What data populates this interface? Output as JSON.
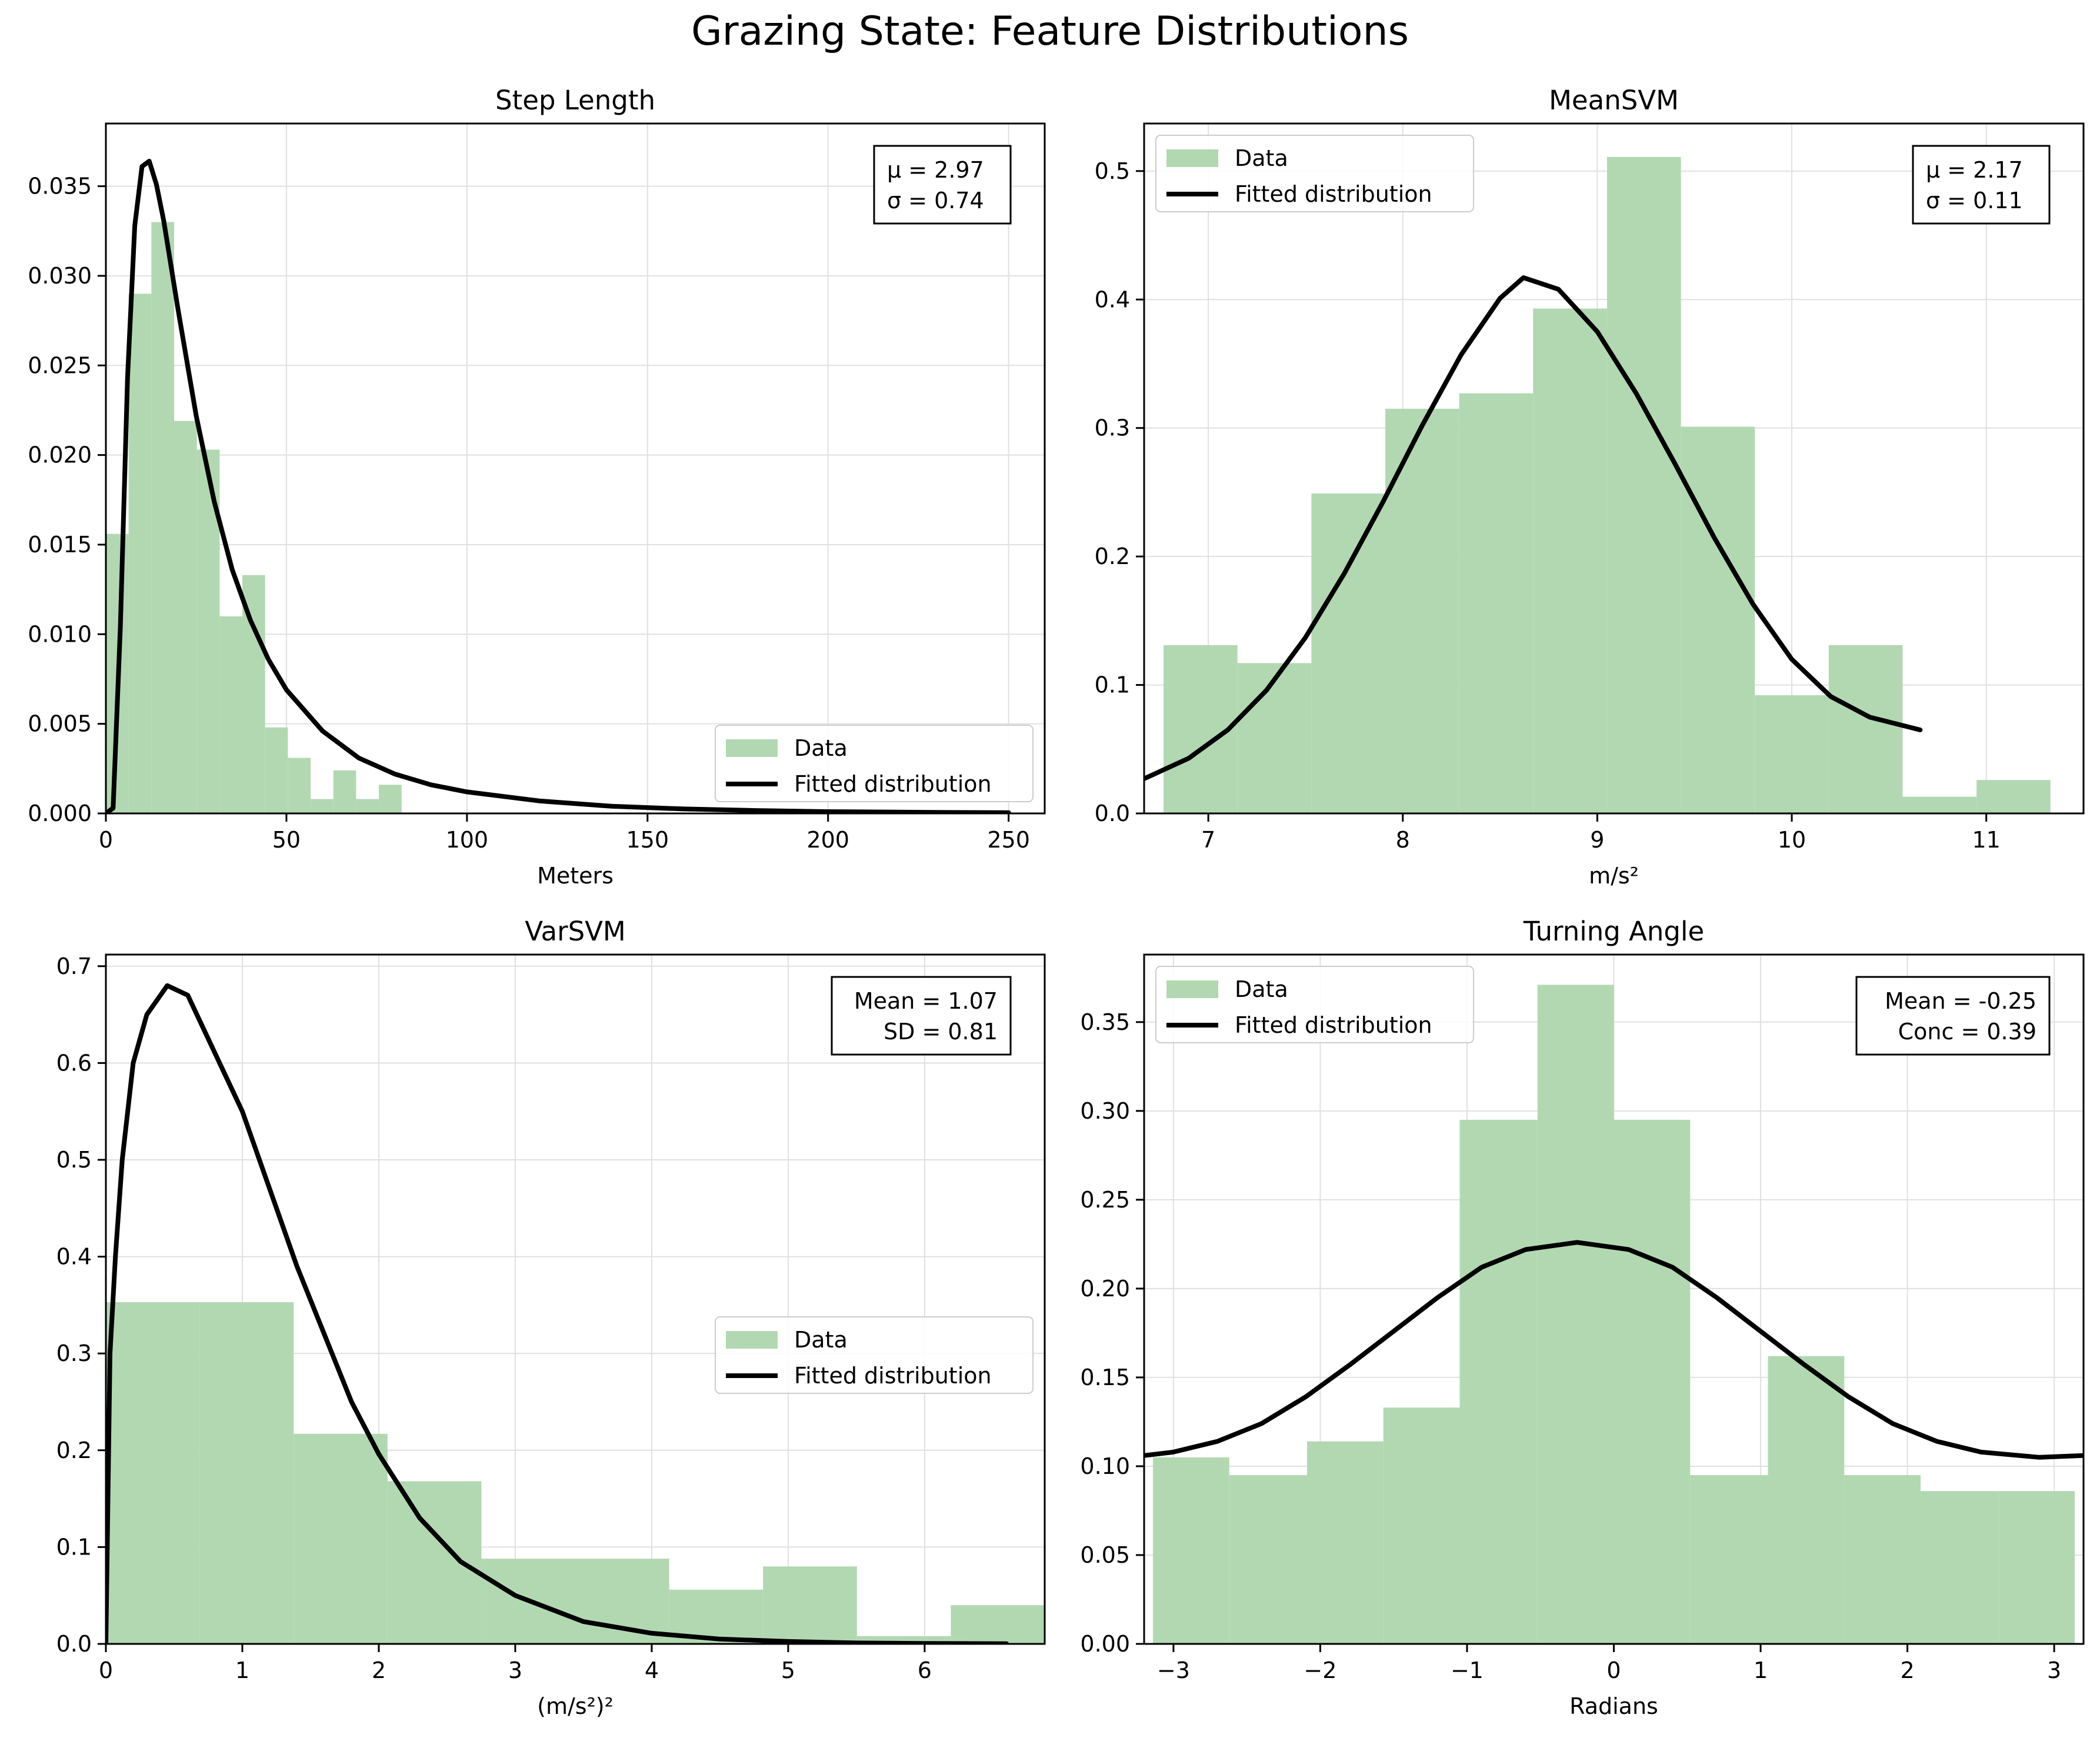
{
  "figure": {
    "title": "Grazing State: Feature Distributions"
  },
  "colors": {
    "hist": "#b2d8b2",
    "curve": "#000000",
    "grid": "#e0e0e0"
  },
  "legend_labels": {
    "data": "Data",
    "fit": "Fitted distribution"
  },
  "chart_data": [
    {
      "type": "bar",
      "title": "Step Length",
      "xlabel": "Meters",
      "ylabel": "",
      "xlim": [
        0,
        260
      ],
      "ylim": [
        0,
        0.0385
      ],
      "xticks": [
        0,
        50,
        100,
        150,
        200,
        250
      ],
      "xtick_labels": [
        "0",
        "50",
        "100",
        "150",
        "200",
        "250"
      ],
      "yticks": [
        0,
        0.005,
        0.01,
        0.015,
        0.02,
        0.025,
        0.03,
        0.035
      ],
      "ytick_labels": [
        "0.000",
        "0.005",
        "0.010",
        "0.015",
        "0.020",
        "0.025",
        "0.030",
        "0.035"
      ],
      "legend": "lower-right",
      "grid": true,
      "stats_text": [
        "μ = 2.97",
        "σ = 0.74"
      ],
      "stats_align": "left",
      "histogram": {
        "bin_edges": [
          0,
          6.3,
          12.6,
          18.9,
          25.2,
          31.5,
          37.8,
          44.1,
          50.4,
          56.7,
          63,
          69.3,
          75.6,
          81.9,
          88.2
        ],
        "values": [
          0.0156,
          0.029,
          0.033,
          0.0219,
          0.0203,
          0.011,
          0.0133,
          0.0048,
          0.0031,
          0.0008,
          0.0024,
          0.0008,
          0.0016,
          0
        ]
      },
      "fit": {
        "x": [
          0,
          2,
          4,
          6,
          8,
          10,
          12,
          14,
          16,
          18,
          20,
          25,
          30,
          35,
          40,
          45,
          50,
          60,
          70,
          80,
          90,
          100,
          120,
          140,
          160,
          180,
          200,
          230,
          250
        ],
        "y": [
          0,
          0.0003,
          0.0104,
          0.0243,
          0.0328,
          0.0361,
          0.0364,
          0.0351,
          0.0331,
          0.0306,
          0.0281,
          0.0222,
          0.0174,
          0.0136,
          0.0108,
          0.0086,
          0.0069,
          0.0046,
          0.0031,
          0.0022,
          0.0016,
          0.0012,
          0.0007,
          0.0004,
          0.00025,
          0.00016,
          0.0001,
          6e-05,
          4e-05
        ]
      }
    },
    {
      "type": "bar",
      "title": "MeanSVM",
      "xlabel": "m/s²",
      "ylabel": "",
      "xlim": [
        6.67,
        11.5
      ],
      "ylim": [
        0,
        0.537
      ],
      "xticks": [
        7,
        8,
        9,
        10,
        11
      ],
      "xtick_labels": [
        "7",
        "8",
        "9",
        "10",
        "11"
      ],
      "yticks": [
        0,
        0.1,
        0.2,
        0.3,
        0.4,
        0.5
      ],
      "ytick_labels": [
        "0.0",
        "0.1",
        "0.2",
        "0.3",
        "0.4",
        "0.5"
      ],
      "legend": "upper-left",
      "grid": true,
      "stats_text": [
        "μ = 2.17",
        "σ = 0.11"
      ],
      "stats_align": "left",
      "histogram": {
        "bin_edges": [
          6.77,
          7.15,
          7.53,
          7.91,
          8.29,
          8.67,
          9.05,
          9.43,
          9.81,
          10.19,
          10.57,
          10.95,
          11.33
        ],
        "values": [
          0.131,
          0.117,
          0.249,
          0.315,
          0.327,
          0.393,
          0.511,
          0.301,
          0.092,
          0.131,
          0.013,
          0.026
        ]
      },
      "fit": {
        "x": [
          6.67,
          6.9,
          7.1,
          7.3,
          7.5,
          7.7,
          7.9,
          8.1,
          8.3,
          8.5,
          8.62,
          8.8,
          9.0,
          9.2,
          9.4,
          9.6,
          9.8,
          10.0,
          10.2,
          10.4,
          10.66
        ],
        "y": [
          0.027,
          0.043,
          0.065,
          0.096,
          0.137,
          0.187,
          0.243,
          0.302,
          0.357,
          0.401,
          0.417,
          0.408,
          0.375,
          0.327,
          0.272,
          0.215,
          0.163,
          0.12,
          0.091,
          0.075,
          0.065
        ]
      }
    },
    {
      "type": "bar",
      "title": "VarSVM",
      "xlabel": "(m/s²)²",
      "ylabel": "",
      "xlim": [
        0,
        6.88
      ],
      "ylim": [
        0,
        0.712
      ],
      "xticks": [
        0,
        1,
        2,
        3,
        4,
        5,
        6
      ],
      "xtick_labels": [
        "0",
        "1",
        "2",
        "3",
        "4",
        "5",
        "6"
      ],
      "yticks": [
        0,
        0.1,
        0.2,
        0.3,
        0.4,
        0.5,
        0.6,
        0.7
      ],
      "ytick_labels": [
        "0.0",
        "0.1",
        "0.2",
        "0.3",
        "0.4",
        "0.5",
        "0.6",
        "0.7"
      ],
      "legend": "center-right",
      "grid": true,
      "stats_text": [
        "Mean = 1.07",
        "SD = 0.81"
      ],
      "stats_align": "right",
      "histogram": {
        "bin_edges": [
          0,
          0.688,
          1.376,
          2.064,
          2.752,
          3.44,
          4.128,
          4.816,
          5.504,
          6.192,
          6.88
        ],
        "values": [
          0.353,
          0.353,
          0.217,
          0.168,
          0.088,
          0.088,
          0.056,
          0.08,
          0.008,
          0.04
        ]
      },
      "fit": {
        "x": [
          0,
          0.03,
          0.07,
          0.12,
          0.2,
          0.3,
          0.45,
          0.6,
          0.8,
          1.0,
          1.2,
          1.4,
          1.6,
          1.8,
          2.0,
          2.3,
          2.6,
          3.0,
          3.5,
          4.0,
          4.5,
          5.0,
          5.5,
          6.0,
          6.6
        ],
        "y": [
          0,
          0.3,
          0.4,
          0.5,
          0.6,
          0.65,
          0.68,
          0.67,
          0.61,
          0.55,
          0.47,
          0.39,
          0.32,
          0.25,
          0.196,
          0.13,
          0.085,
          0.05,
          0.023,
          0.011,
          0.005,
          0.0025,
          0.001,
          0.0005,
          0.0002
        ]
      }
    },
    {
      "type": "bar",
      "title": "Turning Angle",
      "xlabel": "Radians",
      "ylabel": "",
      "xlim": [
        -3.2,
        3.2
      ],
      "ylim": [
        0,
        0.388
      ],
      "xticks": [
        -3,
        -2,
        -1,
        0,
        1,
        2,
        3
      ],
      "xtick_labels": [
        "−3",
        "−2",
        "−1",
        "0",
        "1",
        "2",
        "3"
      ],
      "yticks": [
        0,
        0.05,
        0.1,
        0.15,
        0.2,
        0.25,
        0.3,
        0.35
      ],
      "ytick_labels": [
        "0.00",
        "0.05",
        "0.10",
        "0.15",
        "0.20",
        "0.25",
        "0.30",
        "0.35"
      ],
      "legend": "upper-left",
      "grid": true,
      "stats_text": [
        "Mean = -0.25",
        "Conc = 0.39"
      ],
      "stats_align": "right",
      "histogram": {
        "bin_edges": [
          -3.14,
          -2.62,
          -2.09,
          -1.57,
          -1.05,
          -0.52,
          0,
          0.52,
          1.05,
          1.57,
          2.09,
          2.62,
          3.14
        ],
        "values": [
          0.105,
          0.095,
          0.114,
          0.133,
          0.295,
          0.371,
          0.295,
          0.095,
          0.162,
          0.095,
          0.086,
          0.086
        ]
      },
      "fit": {
        "x": [
          -3.2,
          -3.0,
          -2.7,
          -2.4,
          -2.1,
          -1.8,
          -1.5,
          -1.2,
          -0.9,
          -0.6,
          -0.25,
          0.1,
          0.4,
          0.7,
          1.0,
          1.3,
          1.6,
          1.9,
          2.2,
          2.5,
          2.9,
          3.2
        ],
        "y": [
          0.106,
          0.108,
          0.114,
          0.124,
          0.139,
          0.157,
          0.176,
          0.195,
          0.212,
          0.222,
          0.226,
          0.222,
          0.212,
          0.195,
          0.176,
          0.157,
          0.139,
          0.124,
          0.114,
          0.108,
          0.105,
          0.106
        ]
      }
    }
  ]
}
